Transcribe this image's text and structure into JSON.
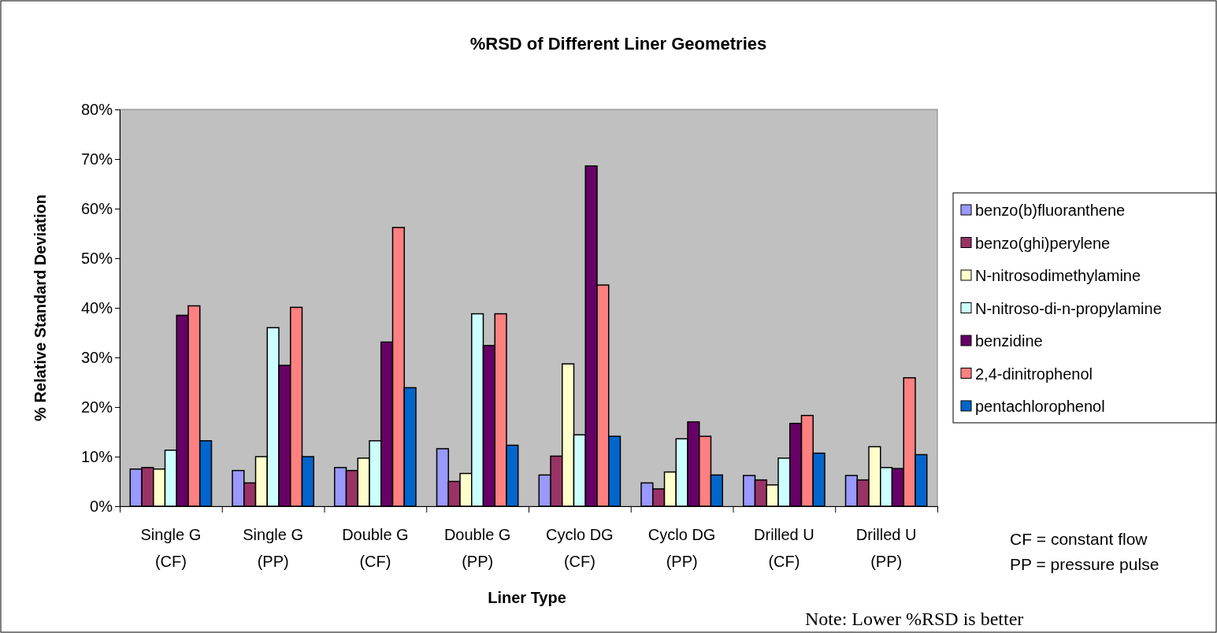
{
  "chart_data": {
    "type": "bar",
    "title": "%RSD of Different Liner Geometries",
    "xlabel": "Liner Type",
    "ylabel": "% Relative Standard Deviation",
    "categories": [
      "Single G (CF)",
      "Single G (PP)",
      "Double G (CF)",
      "Double G (PP)",
      "Cyclo DG (CF)",
      "Cyclo DG (PP)",
      "Drilled U (CF)",
      "Drilled U (PP)"
    ],
    "series": [
      {
        "name": "benzo(b)fluoranthene",
        "color": "#9999ff",
        "values": [
          7.5,
          7.2,
          7.8,
          11.6,
          6.3,
          4.7,
          6.2,
          6.2
        ]
      },
      {
        "name": "benzo(ghi)perylene",
        "color": "#993366",
        "values": [
          7.8,
          4.7,
          7.2,
          5.0,
          10.1,
          3.5,
          5.3,
          5.3
        ]
      },
      {
        "name": "N-nitrosodimethylamine",
        "color": "#ffffcc",
        "values": [
          7.5,
          10.0,
          9.7,
          6.6,
          28.7,
          6.9,
          4.3,
          12.0
        ]
      },
      {
        "name": "N-nitroso-di-n-propylamine",
        "color": "#ccffff",
        "values": [
          11.3,
          36.0,
          13.2,
          38.8,
          14.4,
          13.6,
          9.7,
          7.8
        ]
      },
      {
        "name": "benzidine",
        "color": "#660066",
        "values": [
          38.5,
          28.4,
          33.1,
          32.4,
          68.6,
          17.0,
          16.7,
          7.6
        ]
      },
      {
        "name": "2,4-dinitrophenol",
        "color": "#ff8080",
        "values": [
          40.4,
          40.1,
          56.2,
          38.8,
          44.6,
          14.1,
          18.3,
          25.9
        ]
      },
      {
        "name": "pentachlorophenol",
        "color": "#0066cc",
        "values": [
          13.2,
          10.0,
          23.9,
          12.3,
          14.1,
          6.3,
          10.7,
          10.4
        ]
      }
    ],
    "ylim": [
      0,
      80
    ],
    "yticks": [
      {
        "value": 0,
        "label": "0%"
      },
      {
        "value": 10,
        "label": "10%"
      },
      {
        "value": 20,
        "label": "20%"
      },
      {
        "value": 30,
        "label": "30%"
      },
      {
        "value": 40,
        "label": "40%"
      },
      {
        "value": 50,
        "label": "50%"
      },
      {
        "value": 60,
        "label": "60%"
      },
      {
        "value": 70,
        "label": "70%"
      },
      {
        "value": 80,
        "label": "80%"
      }
    ],
    "grid": false,
    "legend": "right",
    "annotations": [
      "CF = constant flow",
      "PP = pressure pulse",
      "Note: Lower %RSD is better"
    ]
  }
}
